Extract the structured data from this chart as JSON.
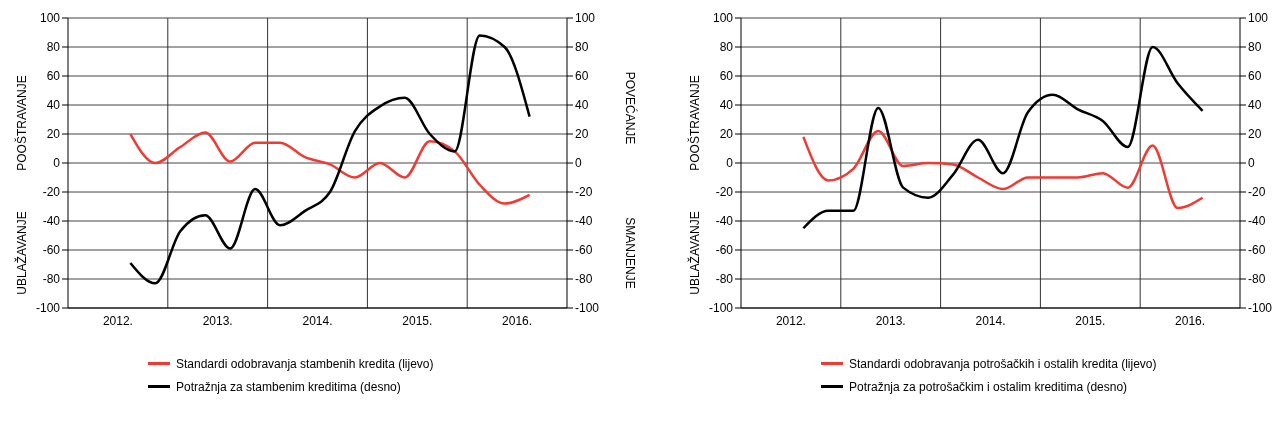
{
  "chart_data": [
    {
      "type": "line",
      "x": [
        2012.625,
        2012.875,
        2013.125,
        2013.375,
        2013.625,
        2013.875,
        2014.125,
        2014.375,
        2014.625,
        2014.875,
        2015.125,
        2015.375,
        2015.625,
        2015.875,
        2016.125,
        2016.375,
        2016.625
      ],
      "series": [
        {
          "name": "Standardi odobravanja stambenih kredita  (lijevo)",
          "color": "#ee3b33",
          "values": [
            20,
            0,
            11,
            21,
            1,
            14,
            14,
            4,
            -1,
            -10,
            0,
            -10,
            15,
            8,
            -15,
            -28,
            -22
          ]
        },
        {
          "name": "Potražnja za stambenim kreditima (desno)",
          "color": "#000000",
          "axis": "y2",
          "values": [
            -69,
            -83,
            -47,
            -36,
            -59,
            -18,
            -43,
            -33,
            -20,
            22,
            39,
            45,
            20,
            8,
            88,
            80,
            32
          ]
        }
      ],
      "xlim": [
        2012,
        2017
      ],
      "xticks": [
        {
          "value": 2012.5,
          "label": "2012."
        },
        {
          "value": 2013.5,
          "label": "2013."
        },
        {
          "value": 2014.5,
          "label": "2014."
        },
        {
          "value": 2015.5,
          "label": "2015."
        },
        {
          "value": 2016.5,
          "label": "2016."
        }
      ],
      "ylim": [
        -100,
        100
      ],
      "yticks": [
        -100,
        -80,
        -60,
        -40,
        -20,
        0,
        20,
        40,
        60,
        80,
        100
      ],
      "y2lim": [
        -100,
        100
      ],
      "y2ticks": [
        -100,
        -80,
        -60,
        -40,
        -20,
        0,
        20,
        40,
        60,
        80,
        100
      ],
      "ref_lines": [
        {
          "axis": "x",
          "value": 2013,
          "color": "#333333"
        },
        {
          "axis": "x",
          "value": 2014,
          "color": "#333333"
        },
        {
          "axis": "x",
          "value": 2015,
          "color": "#333333"
        },
        {
          "axis": "x",
          "value": 2016,
          "color": "#333333"
        }
      ],
      "annotations": [
        "POOŠTRAVANJE",
        "UBLAŽAVANJE",
        "POVEĆANJE",
        "SMANJENJE"
      ],
      "grid": "y",
      "legend": "bottom",
      "marker": "none",
      "line_style": "solid"
    },
    {
      "type": "line",
      "x": [
        2012.625,
        2012.875,
        2013.125,
        2013.375,
        2013.625,
        2013.875,
        2014.125,
        2014.375,
        2014.625,
        2014.875,
        2015.125,
        2015.375,
        2015.625,
        2015.875,
        2016.125,
        2016.375,
        2016.625
      ],
      "series": [
        {
          "name": "Standardi odobravanja potrošačkih i ostalih kredita (lijevo)",
          "color": "#ee3b33",
          "values": [
            18,
            -12,
            -4,
            22,
            -2,
            0,
            -1,
            -10,
            -18,
            -10,
            -10,
            -10,
            -7,
            -17,
            12,
            -31,
            -24
          ]
        },
        {
          "name": "Potražnja za potrošačkim i ostalim kreditima (desno)",
          "color": "#000000",
          "axis": "y2",
          "values": [
            -45,
            -33,
            -33,
            38,
            -17,
            -24,
            -8,
            16,
            -7,
            35,
            47,
            37,
            29,
            11,
            80,
            55,
            36
          ]
        }
      ],
      "xlim": [
        2012,
        2017
      ],
      "xticks": [
        {
          "value": 2012.5,
          "label": "2012."
        },
        {
          "value": 2013.5,
          "label": "2013."
        },
        {
          "value": 2014.5,
          "label": "2014."
        },
        {
          "value": 2015.5,
          "label": "2015."
        },
        {
          "value": 2016.5,
          "label": "2016."
        }
      ],
      "ylim": [
        -100,
        100
      ],
      "yticks": [
        -100,
        -80,
        -60,
        -40,
        -20,
        0,
        20,
        40,
        60,
        80,
        100
      ],
      "y2lim": [
        -100,
        100
      ],
      "y2ticks": [
        -100,
        -80,
        -60,
        -40,
        -20,
        0,
        20,
        40,
        60,
        80,
        100
      ],
      "ref_lines": [
        {
          "axis": "x",
          "value": 2013,
          "color": "#333333"
        },
        {
          "axis": "x",
          "value": 2014,
          "color": "#333333"
        },
        {
          "axis": "x",
          "value": 2015,
          "color": "#333333"
        },
        {
          "axis": "x",
          "value": 2016,
          "color": "#333333"
        }
      ],
      "annotations": [
        "POOŠTRAVANJE",
        "UBLAŽAVANJE"
      ],
      "grid": "y",
      "legend": "bottom",
      "marker": "none",
      "line_style": "solid"
    }
  ]
}
